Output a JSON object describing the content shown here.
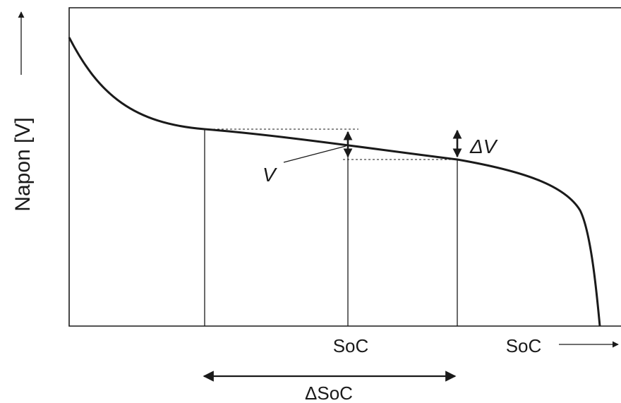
{
  "diagram": {
    "y_axis_label": "Napon [V]",
    "x_axis_label": "SoC",
    "soc_tick_label": "SoC",
    "voltage_point_label": "V",
    "delta_v_label": "ΔV",
    "delta_soc_label": "ΔSoC"
  },
  "colors": {
    "stroke": "#1a1a1a",
    "background": "#ffffff"
  }
}
